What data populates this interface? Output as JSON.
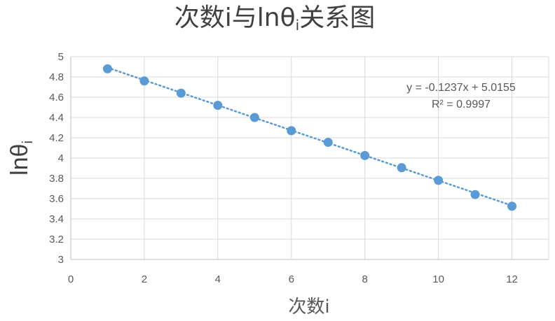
{
  "chart_data": {
    "type": "scatter",
    "title_main": "次数i与lnθ",
    "title_sub": "i",
    "title_rest": "关系图",
    "xlabel": "次数i",
    "ylabel_main": "lnθ",
    "ylabel_sub": "i",
    "xlim": [
      0,
      13
    ],
    "ylim": [
      3,
      5
    ],
    "xticks": [
      "0",
      "2",
      "4",
      "6",
      "8",
      "10",
      "12"
    ],
    "yticks": [
      "3",
      "3.2",
      "3.4",
      "3.6",
      "3.8",
      "4",
      "4.2",
      "4.4",
      "4.6",
      "4.8",
      "5"
    ],
    "grid": true,
    "series": [
      {
        "name": "lnθi",
        "x": [
          1,
          2,
          3,
          4,
          5,
          6,
          7,
          8,
          9,
          10,
          11,
          12
        ],
        "y": [
          4.88,
          4.76,
          4.64,
          4.52,
          4.4,
          4.27,
          4.155,
          4.025,
          3.905,
          3.78,
          3.64,
          3.525
        ]
      }
    ],
    "trendline": {
      "type": "linear",
      "slope": -0.1237,
      "intercept": 5.0155,
      "x_range": [
        1,
        12
      ],
      "equation": "y = -0.1237x + 5.0155",
      "r_squared": "R² = 0.9997"
    },
    "colors": {
      "marker": "#5B9BD5",
      "trendline": "#5B9BD5",
      "grid": "#D9D9D9",
      "text": "#595959",
      "title": "#404040"
    }
  }
}
